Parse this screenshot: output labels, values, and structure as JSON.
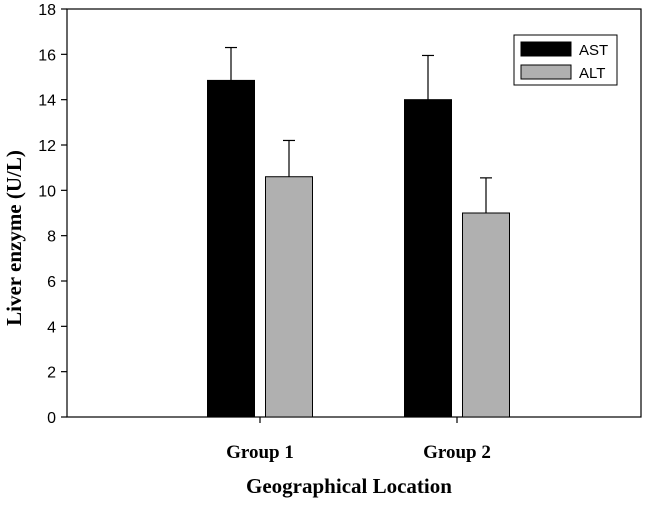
{
  "chart_data": {
    "type": "bar",
    "title": "",
    "xlabel": "Geographical Location",
    "ylabel": "Liver enzyme (U/L)",
    "categories": [
      "Group 1",
      "Group 2"
    ],
    "series": [
      {
        "name": "AST",
        "values": [
          14.85,
          14.0
        ],
        "errors": [
          1.45,
          1.95
        ],
        "color": "#000000"
      },
      {
        "name": "ALT",
        "values": [
          10.6,
          9.0
        ],
        "errors": [
          1.6,
          1.55
        ],
        "color": "#b0b0b0"
      }
    ],
    "ylim": [
      0,
      18
    ],
    "yticks": [
      0,
      2,
      4,
      6,
      8,
      10,
      12,
      14,
      16,
      18
    ],
    "ytick_labels": [
      "0",
      "2",
      "4",
      "6",
      "8",
      "10",
      "12",
      "14",
      "16",
      "18"
    ],
    "grid": false,
    "legend_position": "top-right",
    "error_bars": "upper"
  }
}
